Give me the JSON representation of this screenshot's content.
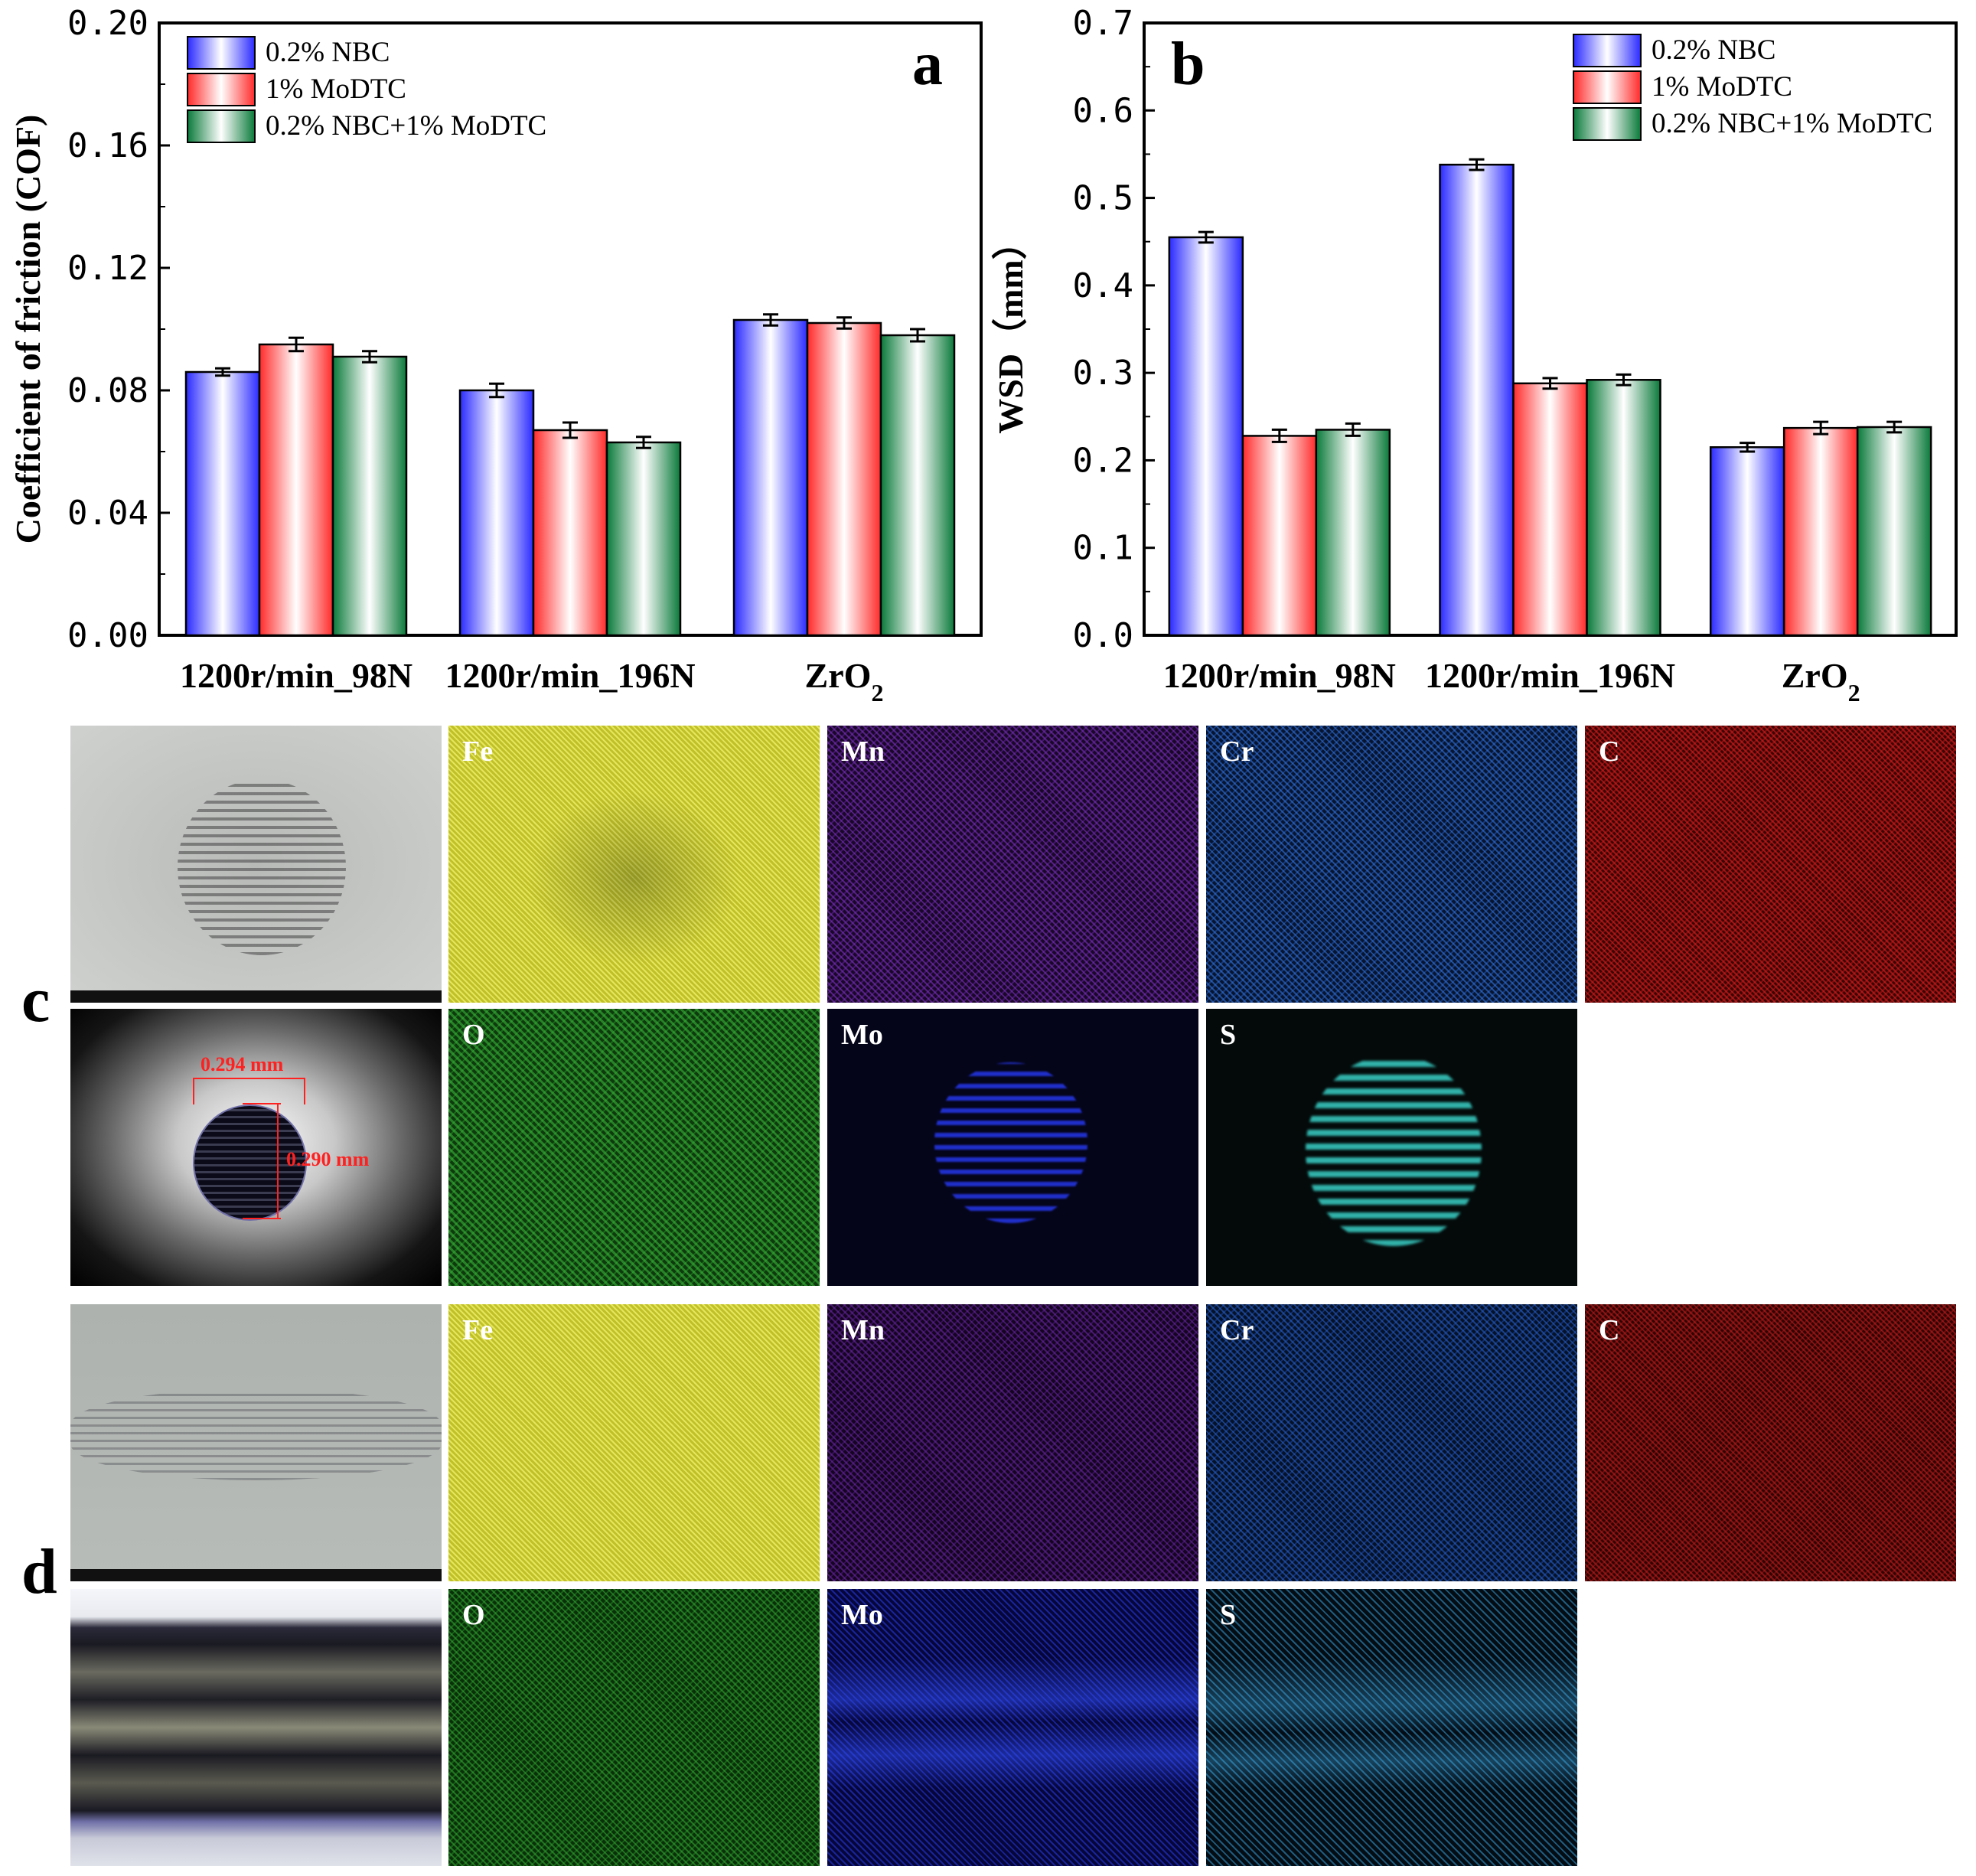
{
  "chart_data": [
    {
      "type": "bar",
      "panel": "a",
      "ylabel": "Coefficient of friction (COF)",
      "xlabel": "",
      "ylim": [
        0,
        0.2
      ],
      "yticks": [
        "0.00",
        "0.04",
        "0.08",
        "0.12",
        "0.16",
        "0.20"
      ],
      "categories": [
        "1200r/min_98N",
        "1200r/min_196N",
        "ZrO2"
      ],
      "series": [
        {
          "name": "0.2% NBC",
          "color": "#2a2aff",
          "values": [
            0.086,
            0.08,
            0.103
          ],
          "errors": [
            0.0012,
            0.0022,
            0.0018
          ]
        },
        {
          "name": "1% MoDTC",
          "color": "#ff3030",
          "values": [
            0.095,
            0.067,
            0.102
          ],
          "errors": [
            0.0022,
            0.0025,
            0.0018
          ]
        },
        {
          "name": "0.2% NBC+1% MoDTC",
          "color": "#0a8a3a",
          "values": [
            0.091,
            0.063,
            0.098
          ],
          "errors": [
            0.0018,
            0.0018,
            0.002
          ]
        }
      ],
      "legend": "top-left"
    },
    {
      "type": "bar",
      "panel": "b",
      "ylabel": "WSD（mm）",
      "xlabel": "",
      "ylim": [
        0,
        0.7
      ],
      "yticks": [
        "0.0",
        "0.1",
        "0.2",
        "0.3",
        "0.4",
        "0.5",
        "0.6",
        "0.7"
      ],
      "categories": [
        "1200r/min_98N",
        "1200r/min_196N",
        "ZrO2"
      ],
      "series": [
        {
          "name": "0.2% NBC",
          "color": "#2a2aff",
          "values": [
            0.455,
            0.538,
            0.215
          ],
          "errors": [
            0.006,
            0.006,
            0.005
          ]
        },
        {
          "name": "1% MoDTC",
          "color": "#ff3030",
          "values": [
            0.228,
            0.288,
            0.237
          ],
          "errors": [
            0.007,
            0.006,
            0.007
          ]
        },
        {
          "name": "0.2% NBC+1% MoDTC",
          "color": "#0a8a3a",
          "values": [
            0.235,
            0.292,
            0.238
          ],
          "errors": [
            0.007,
            0.006,
            0.006
          ]
        }
      ],
      "legend": "top-right"
    }
  ],
  "maps": {
    "row_c_label": "c",
    "row_d_label": "d",
    "c_top": [
      {
        "name": "sem",
        "label": ""
      },
      {
        "name": "fe",
        "label": "Fe",
        "color": "#d8d830"
      },
      {
        "name": "mn",
        "label": "Mn",
        "color": "#7a2ab8"
      },
      {
        "name": "cr",
        "label": "Cr",
        "color": "#2a6ad8"
      },
      {
        "name": "c",
        "label": "C",
        "color": "#c81818"
      }
    ],
    "c_bottom": [
      {
        "name": "optical",
        "label": ""
      },
      {
        "name": "o",
        "label": "O",
        "color": "#2aa02a"
      },
      {
        "name": "mo",
        "label": "Mo",
        "color": "#2020d0"
      },
      {
        "name": "s",
        "label": "S",
        "color": "#30c0c0"
      }
    ],
    "d_top": [
      {
        "name": "sem",
        "label": ""
      },
      {
        "name": "fe",
        "label": "Fe",
        "color": "#d8d830"
      },
      {
        "name": "mn",
        "label": "Mn",
        "color": "#6a2aa8"
      },
      {
        "name": "cr",
        "label": "Cr",
        "color": "#2a5ac8"
      },
      {
        "name": "c",
        "label": "C",
        "color": "#b81818"
      }
    ],
    "d_bottom": [
      {
        "name": "optical",
        "label": ""
      },
      {
        "name": "o",
        "label": "O",
        "color": "#2a9a2a"
      },
      {
        "name": "mo",
        "label": "Mo",
        "color": "#2030e0"
      },
      {
        "name": "s",
        "label": "S",
        "color": "#30a8d8"
      }
    ],
    "measure_h": "0.294 mm",
    "measure_v": "0.290 mm"
  }
}
